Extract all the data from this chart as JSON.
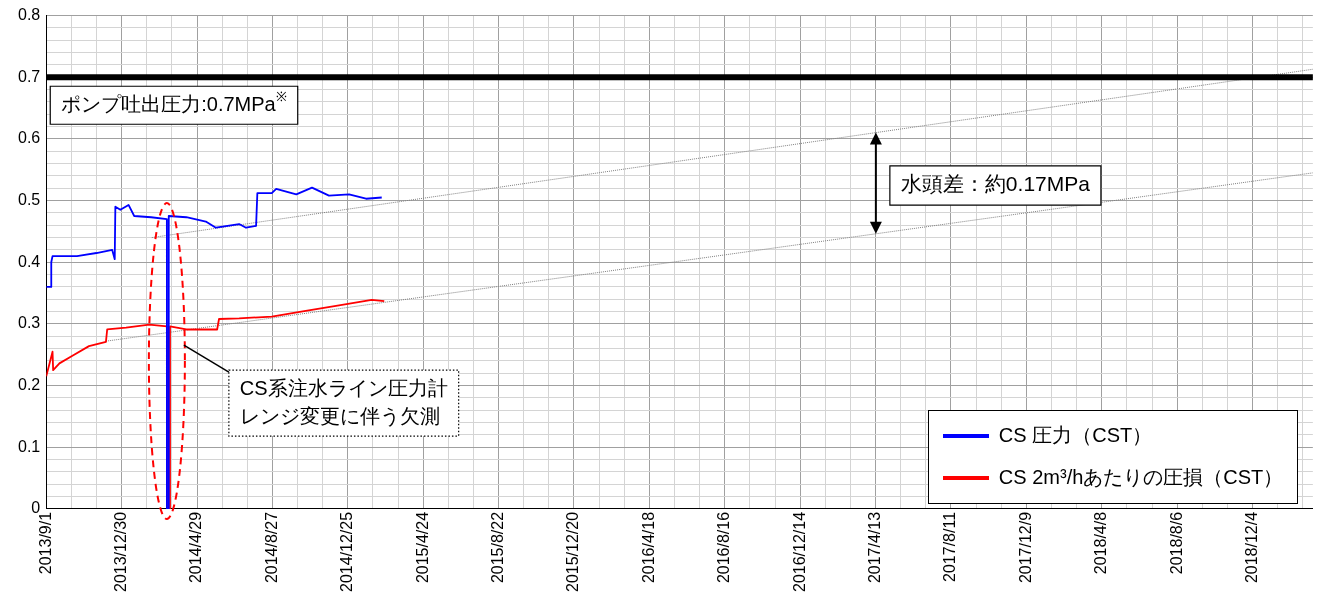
{
  "chart_data": {
    "type": "line",
    "ylim": [
      0,
      0.8
    ],
    "xlim": [
      "2013-09-01",
      "2019-03-10"
    ],
    "xticks": [
      {
        "value": "2013-09-01",
        "label": "2013/9/1"
      },
      {
        "value": "2013-10-11",
        "label": null
      },
      {
        "value": "2013-11-20",
        "label": null
      },
      {
        "value": "2013-12-30",
        "label": "2013/12/30"
      },
      {
        "value": "2014-02-08",
        "label": null
      },
      {
        "value": "2014-03-20",
        "label": null
      },
      {
        "value": "2014-04-29",
        "label": "2014/4/29"
      },
      {
        "value": "2014-06-08",
        "label": null
      },
      {
        "value": "2014-07-18",
        "label": null
      },
      {
        "value": "2014-08-27",
        "label": "2014/8/27"
      },
      {
        "value": "2014-10-06",
        "label": null
      },
      {
        "value": "2014-11-15",
        "label": null
      },
      {
        "value": "2014-12-25",
        "label": "2014/12/25"
      },
      {
        "value": "2015-02-03",
        "label": null
      },
      {
        "value": "2015-03-15",
        "label": null
      },
      {
        "value": "2015-04-24",
        "label": "2015/4/24"
      },
      {
        "value": "2015-06-03",
        "label": null
      },
      {
        "value": "2015-07-13",
        "label": null
      },
      {
        "value": "2015-08-22",
        "label": "2015/8/22"
      },
      {
        "value": "2015-10-01",
        "label": null
      },
      {
        "value": "2015-11-10",
        "label": null
      },
      {
        "value": "2015-12-20",
        "label": "2015/12/20"
      },
      {
        "value": "2016-01-29",
        "label": null
      },
      {
        "value": "2016-03-09",
        "label": null
      },
      {
        "value": "2016-04-18",
        "label": "2016/4/18"
      },
      {
        "value": "2016-05-28",
        "label": null
      },
      {
        "value": "2016-07-07",
        "label": null
      },
      {
        "value": "2016-08-16",
        "label": "2016/8/16"
      },
      {
        "value": "2016-09-25",
        "label": null
      },
      {
        "value": "2016-11-04",
        "label": null
      },
      {
        "value": "2016-12-14",
        "label": "2016/12/14"
      },
      {
        "value": "2017-01-23",
        "label": null
      },
      {
        "value": "2017-03-04",
        "label": null
      },
      {
        "value": "2017-04-13",
        "label": "2017/4/13"
      },
      {
        "value": "2017-05-23",
        "label": null
      },
      {
        "value": "2017-07-02",
        "label": null
      },
      {
        "value": "2017-08-11",
        "label": "2017/8/11"
      },
      {
        "value": "2017-09-20",
        "label": null
      },
      {
        "value": "2017-10-30",
        "label": null
      },
      {
        "value": "2017-12-09",
        "label": "2017/12/9"
      },
      {
        "value": "2018-01-18",
        "label": null
      },
      {
        "value": "2018-02-27",
        "label": null
      },
      {
        "value": "2018-04-08",
        "label": "2018/4/8"
      },
      {
        "value": "2018-05-18",
        "label": null
      },
      {
        "value": "2018-06-27",
        "label": null
      },
      {
        "value": "2018-08-06",
        "label": "2018/8/6"
      },
      {
        "value": "2018-09-15",
        "label": null
      },
      {
        "value": "2018-10-25",
        "label": null
      },
      {
        "value": "2018-12-04",
        "label": "2018/12/4"
      },
      {
        "value": "2019-01-13",
        "label": null
      },
      {
        "value": "2019-02-22",
        "label": null
      }
    ],
    "yticks": [
      0,
      {
        "value": 0.02,
        "label": null
      },
      {
        "value": 0.04,
        "label": null
      },
      {
        "value": 0.06,
        "label": null
      },
      {
        "value": 0.08,
        "label": null
      },
      0.1,
      {
        "value": 0.12,
        "label": null
      },
      {
        "value": 0.14,
        "label": null
      },
      {
        "value": 0.16,
        "label": null
      },
      {
        "value": 0.18,
        "label": null
      },
      0.2,
      {
        "value": 0.22,
        "label": null
      },
      {
        "value": 0.24,
        "label": null
      },
      {
        "value": 0.26,
        "label": null
      },
      {
        "value": 0.28,
        "label": null
      },
      0.3,
      {
        "value": 0.32,
        "label": null
      },
      {
        "value": 0.34,
        "label": null
      },
      {
        "value": 0.36,
        "label": null
      },
      {
        "value": 0.38,
        "label": null
      },
      0.4,
      {
        "value": 0.42,
        "label": null
      },
      {
        "value": 0.44,
        "label": null
      },
      {
        "value": 0.46,
        "label": null
      },
      {
        "value": 0.48,
        "label": null
      },
      0.5,
      {
        "value": 0.52,
        "label": null
      },
      {
        "value": 0.54,
        "label": null
      },
      {
        "value": 0.56,
        "label": null
      },
      {
        "value": 0.58,
        "label": null
      },
      0.6,
      {
        "value": 0.62,
        "label": null
      },
      {
        "value": 0.64,
        "label": null
      },
      {
        "value": 0.66,
        "label": null
      },
      {
        "value": 0.68,
        "label": null
      },
      0.7,
      {
        "value": 0.72,
        "label": null
      },
      {
        "value": 0.74,
        "label": null
      },
      {
        "value": 0.76,
        "label": null
      },
      {
        "value": 0.78,
        "label": null
      },
      0.8
    ],
    "grid": true,
    "legend": "bottom right",
    "marker": "none",
    "series": [
      {
        "name": "CS 圧力（CST）",
        "color": "#0000ff",
        "x": [
          "2013-09-01",
          "2013-09-09",
          "2013-09-09",
          "2013-09-11",
          "2013-10-01",
          "2013-10-20",
          "2013-11-20",
          "2013-12-15",
          "2013-12-19",
          "2013-12-20",
          "2013-12-28",
          "2014-01-10",
          "2014-01-19",
          "2014-02-15",
          "2014-03-12",
          "2014-03-12",
          "2014-03-15",
          "2014-03-15",
          "2014-04-12",
          "2014-05-13",
          "2014-05-29",
          "2014-07-05",
          "2014-07-16",
          "2014-08-01",
          "2014-08-03",
          "2014-08-26",
          "2014-09-02",
          "2014-10-04",
          "2014-10-29",
          "2014-11-25",
          "2014-12-27",
          "2015-01-23",
          "2015-02-17"
        ],
        "values": [
          0.36,
          0.36,
          0.4,
          0.41,
          0.41,
          0.41,
          0.415,
          0.42,
          0.405,
          0.49,
          0.485,
          0.493,
          0.475,
          0.473,
          0.47,
          0,
          0,
          0.475,
          0.473,
          0.466,
          0.456,
          0.462,
          0.456,
          0.459,
          0.512,
          0.512,
          0.519,
          0.51,
          0.521,
          0.508,
          0.51,
          0.503,
          0.505
        ]
      },
      {
        "name": "CS 2m³/hあたりの圧損（CST）",
        "color": "#ff0000",
        "x": [
          "2013-09-01",
          "2013-09-11",
          "2013-09-12",
          "2013-09-22",
          "2013-10-12",
          "2013-11-08",
          "2013-12-05",
          "2013-12-07",
          "2014-01-06",
          "2014-02-12",
          "2014-03-12",
          "2014-03-12",
          "2014-03-17",
          "2014-03-17",
          "2014-04-12",
          "2014-05-13",
          "2014-05-31",
          "2014-06-03",
          "2014-07-05",
          "2014-08-26",
          "2014-10-19",
          "2014-12-11",
          "2015-02-01",
          "2015-02-21"
        ],
        "values": [
          0.215,
          0.255,
          0.225,
          0.236,
          0.248,
          0.264,
          0.271,
          0.291,
          0.294,
          0.299,
          0.296,
          0,
          0,
          0.296,
          0.291,
          0.291,
          0.291,
          0.308,
          0.309,
          0.312,
          0.321,
          0.33,
          0.339,
          0.337
        ]
      },
      {
        "type": "line",
        "color": "#808080",
        "line_style": "dotted",
        "x": [
          "2014-02-16",
          "2019-03-10"
        ],
        "values": [
          0.44,
          0.713
        ]
      },
      {
        "type": "line",
        "color": "#808080",
        "line_style": "dotted",
        "x": [
          "2013-12-05",
          "2019-03-10"
        ],
        "values": [
          0.272,
          0.545
        ]
      }
    ],
    "ref_lines": [
      {
        "axis": "y",
        "value": 0.7,
        "label": "ポンプ吐出圧力:0.7MPa$^{※}$",
        "color": "#000000"
      }
    ],
    "annotations": [
      "水頭差：約0.17MPa",
      "CS系注水ライン圧力計レンジ変更に伴う欠測"
    ]
  }
}
